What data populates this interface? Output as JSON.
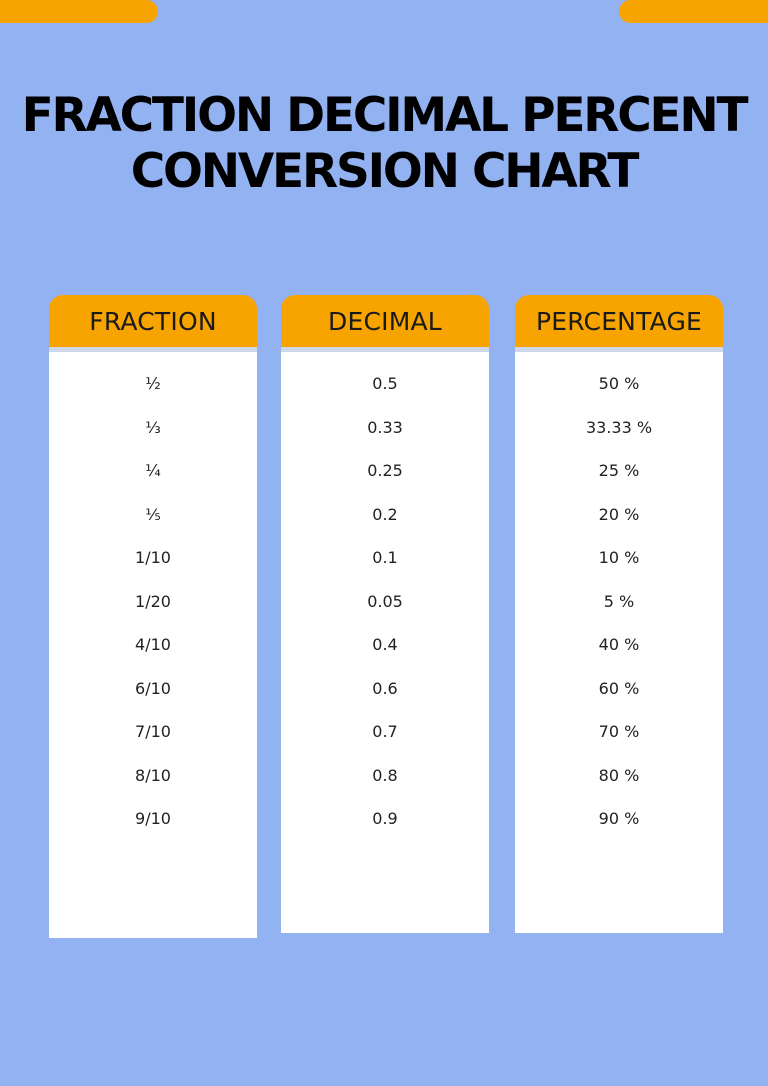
{
  "title": {
    "line1": "FRACTION DECIMAL PERCENT",
    "line2": "CONVERSION CHART"
  },
  "colors": {
    "background": "#93b2f2",
    "accent": "#f7a400",
    "panel": "#ffffff"
  },
  "columns": [
    {
      "header": "FRACTION",
      "values": [
        "½",
        "⅓",
        "¼",
        "⅕",
        "1/10",
        "1/20",
        "4/10",
        "6/10",
        "7/10",
        "8/10",
        "9/10"
      ]
    },
    {
      "header": "DECIMAL",
      "values": [
        "0.5",
        "0.33",
        "0.25",
        "0.2",
        "0.1",
        "0.05",
        "0.4",
        "0.6",
        "0.7",
        "0.8",
        "0.9"
      ]
    },
    {
      "header": "PERCENTAGE",
      "values": [
        "50 %",
        "33.33 %",
        "25 %",
        "20 %",
        "10 %",
        "5 %",
        "40 %",
        "60 %",
        "70 %",
        "80 %",
        "90 %"
      ]
    }
  ]
}
